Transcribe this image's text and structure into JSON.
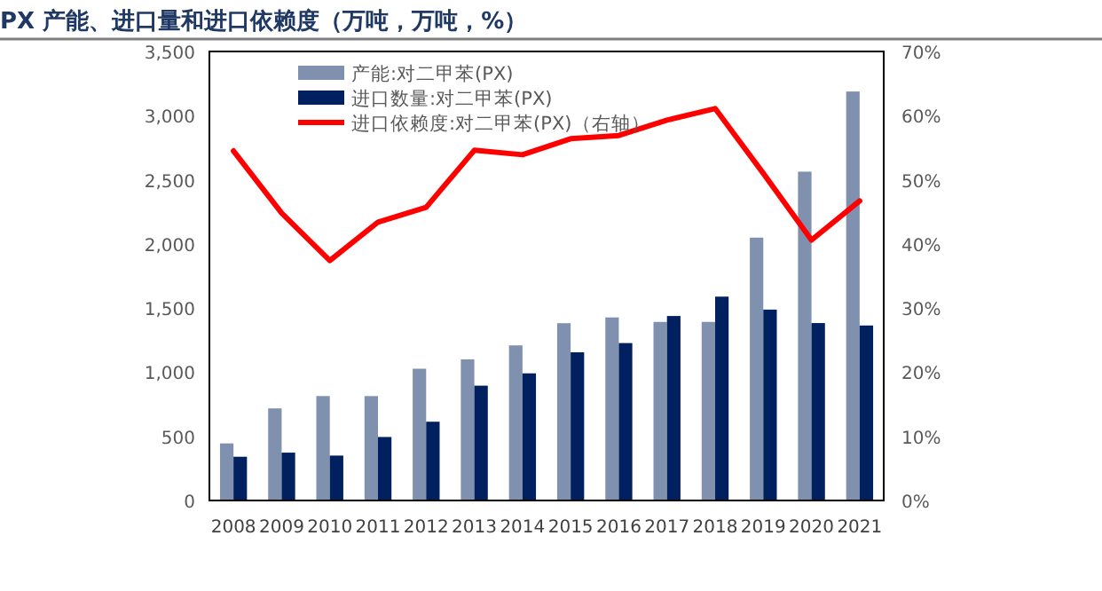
{
  "chart_data": {
    "type": "bar",
    "title": "PX 产能、进口量和进口依赖度（万吨，万吨，%）",
    "categories": [
      "2008",
      "2009",
      "2010",
      "2011",
      "2012",
      "2013",
      "2014",
      "2015",
      "2016",
      "2017",
      "2018",
      "2019",
      "2020",
      "2021"
    ],
    "series": [
      {
        "name": "产能:对二甲苯(PX)",
        "color": "#8091b0",
        "values": [
          445,
          718,
          814,
          814,
          1027,
          1100,
          1209,
          1382,
          1427,
          1392,
          1392,
          2049,
          2563,
          3188
        ]
      },
      {
        "name": "进口数量:对二甲苯(PX)",
        "color": "#002060",
        "values": [
          341,
          373,
          350,
          495,
          614,
          895,
          991,
          1155,
          1227,
          1438,
          1589,
          1488,
          1383,
          1364
        ]
      },
      {
        "name": "进口依赖度:对二甲苯(PX)（右轴）",
        "type": "line",
        "axis": "y2",
        "color": "#ff0000",
        "values": [
          54.5,
          44.8,
          37.4,
          43.4,
          45.7,
          54.6,
          53.9,
          56.4,
          56.9,
          59.3,
          61.1,
          51.0,
          40.6,
          46.7
        ]
      }
    ],
    "ylim": [
      0,
      3500
    ],
    "yticks": [
      0,
      500,
      {
        "value": 1000,
        "label": "1,000"
      },
      {
        "value": 1500,
        "label": "1,500"
      },
      {
        "value": 2000,
        "label": "2,000"
      },
      {
        "value": 2500,
        "label": "2,500"
      },
      {
        "value": 3000,
        "label": "3,000"
      },
      {
        "value": 3500,
        "label": "3,500"
      }
    ],
    "y2lim": [
      0,
      70
    ],
    "y2ticks": [
      {
        "value": 0,
        "label": "0%"
      },
      {
        "value": 10,
        "label": "10%"
      },
      {
        "value": 20,
        "label": "20%"
      },
      {
        "value": 30,
        "label": "30%"
      },
      {
        "value": 40,
        "label": "40%"
      },
      {
        "value": 50,
        "label": "50%"
      },
      {
        "value": 60,
        "label": "60%"
      },
      {
        "value": 70,
        "label": "70%"
      }
    ],
    "legend": "top left",
    "grid": false
  }
}
